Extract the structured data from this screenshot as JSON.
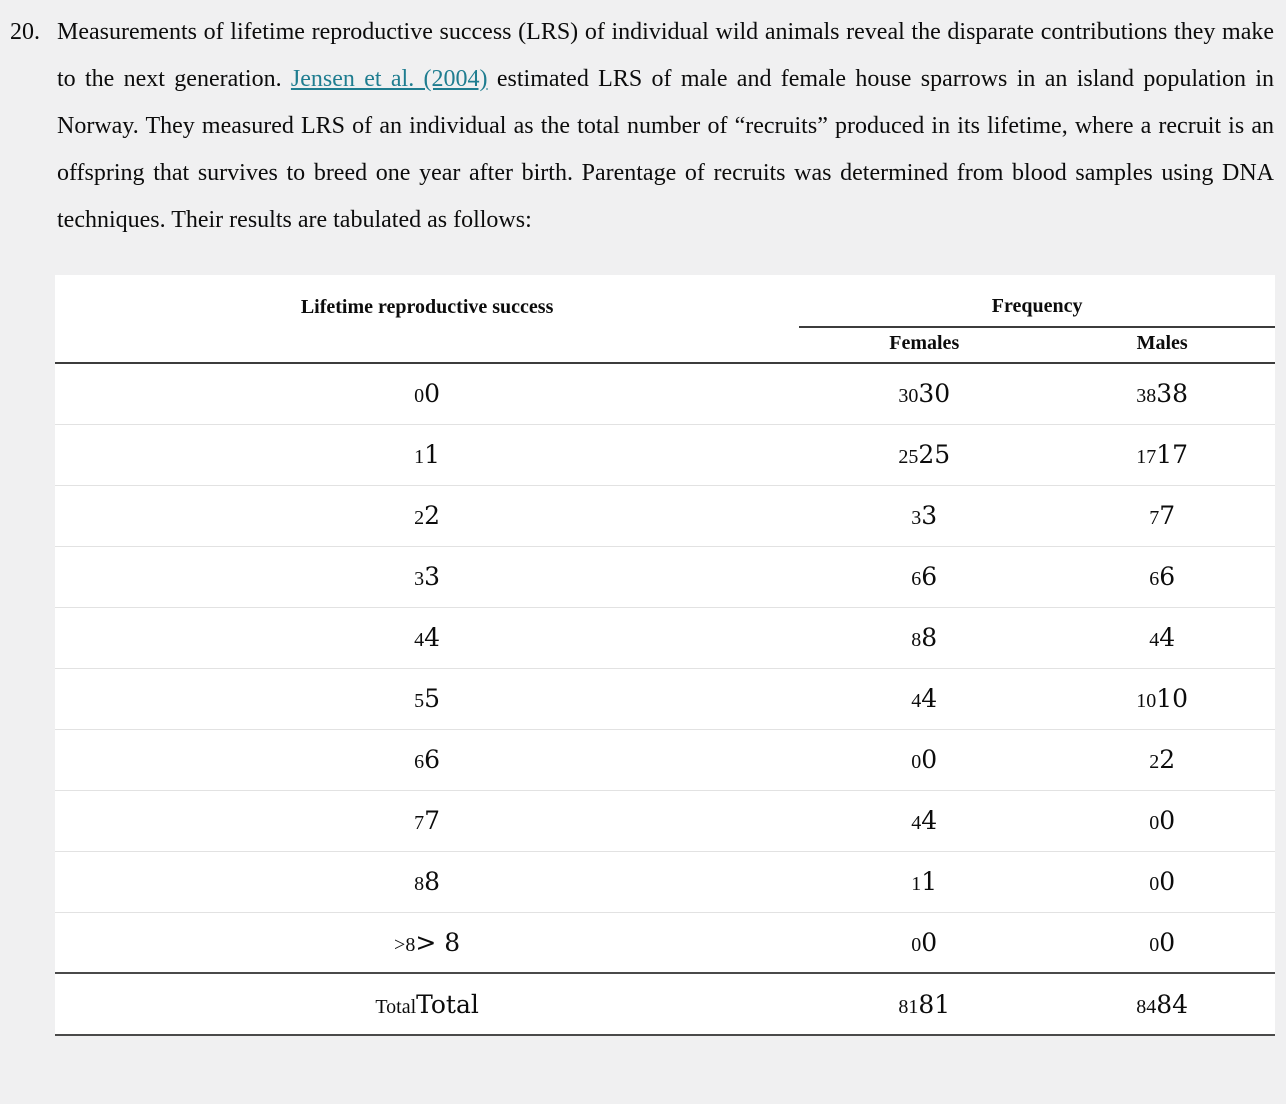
{
  "colors": {
    "page_background": "#f0f0f1",
    "table_background": "#ffffff",
    "link": "#1f7d90",
    "text": "#0c0c0c"
  },
  "problem": {
    "number": "20.",
    "text_before_link": "Measurements of lifetime reproductive success (LRS) of individual wild animals reveal the disparate contributions they make to the next generation. ",
    "link_text": "Jensen et al. (2004)",
    "text_after_link": " estimated LRS of male and female house sparrows in an island population in Norway. They measured LRS of an individual as the total number of “recruits” produced in its lifetime, where a recruit is an offspring that survives to breed one year after birth. Parentage of recruits was determined from blood samples using DNA techniques. Their results are tabulated as follows:"
  },
  "table": {
    "col1_header": "Lifetime reproductive success",
    "group_header": "Frequency",
    "sub_headers": [
      "Females",
      "Males"
    ],
    "rows": [
      {
        "lrs": [
          "0",
          "0"
        ],
        "females": [
          "30",
          "30"
        ],
        "males": [
          "38",
          "38"
        ]
      },
      {
        "lrs": [
          "1",
          "1"
        ],
        "females": [
          "25",
          "25"
        ],
        "males": [
          "17",
          "17"
        ]
      },
      {
        "lrs": [
          "2",
          "2"
        ],
        "females": [
          "3",
          "3"
        ],
        "males": [
          "7",
          "7"
        ]
      },
      {
        "lrs": [
          "3",
          "3"
        ],
        "females": [
          "6",
          "6"
        ],
        "males": [
          "6",
          "6"
        ]
      },
      {
        "lrs": [
          "4",
          "4"
        ],
        "females": [
          "8",
          "8"
        ],
        "males": [
          "4",
          "4"
        ]
      },
      {
        "lrs": [
          "5",
          "5"
        ],
        "females": [
          "4",
          "4"
        ],
        "males": [
          "10",
          "10"
        ]
      },
      {
        "lrs": [
          "6",
          "6"
        ],
        "females": [
          "0",
          "0"
        ],
        "males": [
          "2",
          "2"
        ]
      },
      {
        "lrs": [
          "7",
          "7"
        ],
        "females": [
          "4",
          "4"
        ],
        "males": [
          "0",
          "0"
        ]
      },
      {
        "lrs": [
          "8",
          "8"
        ],
        "females": [
          "1",
          "1"
        ],
        "males": [
          "0",
          "0"
        ]
      },
      {
        "lrs": [
          ">8",
          "> 8"
        ],
        "females": [
          "0",
          "0"
        ],
        "males": [
          "0",
          "0"
        ]
      },
      {
        "lrs": [
          "Total",
          "Total"
        ],
        "females": [
          "81",
          "81"
        ],
        "males": [
          "84",
          "84"
        ],
        "is_total": true
      }
    ]
  }
}
